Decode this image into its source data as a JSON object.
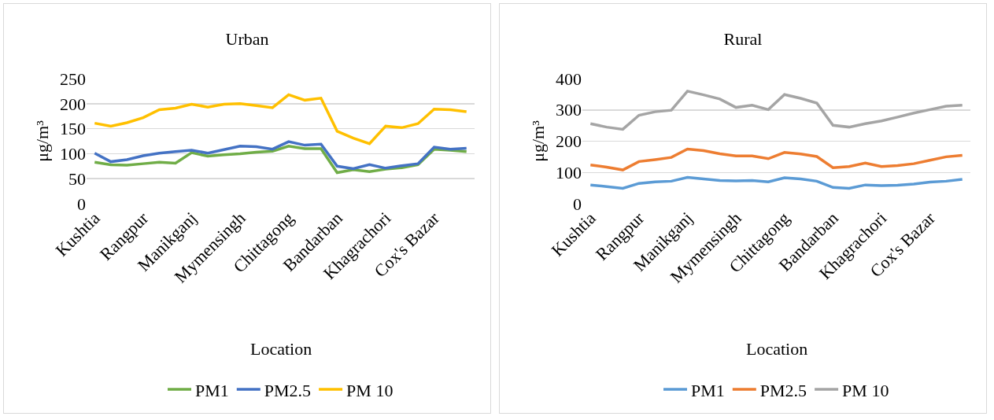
{
  "chart_data": [
    {
      "type": "line",
      "title": "Urban",
      "xlabel": "Location",
      "ylabel": "μg/m³",
      "categories": [
        "Kushtia",
        null,
        null,
        "Rangpur",
        null,
        null,
        "Manikganj",
        null,
        null,
        "Mymensingh",
        null,
        null,
        "Chittagong",
        null,
        null,
        "Bandarban",
        null,
        null,
        "Khagrachori",
        null,
        null,
        "Cox's Bazar",
        null,
        null
      ],
      "ylim": [
        0,
        250
      ],
      "yticks": [
        0,
        50,
        100,
        150,
        200,
        250
      ],
      "grid": "y",
      "legend": "bottom",
      "marker": "none",
      "line_style": "solid",
      "series": [
        {
          "name": "PM1",
          "color": "#70ad47",
          "values": [
            83,
            78,
            77,
            80,
            83,
            81,
            102,
            95,
            98,
            100,
            103,
            105,
            115,
            110,
            110,
            62,
            68,
            64,
            69,
            72,
            78,
            109,
            107,
            104
          ]
        },
        {
          "name": "PM2.5",
          "color": "#4472c4",
          "values": [
            101,
            84,
            88,
            96,
            101,
            104,
            107,
            101,
            108,
            115,
            114,
            109,
            124,
            117,
            119,
            75,
            70,
            78,
            71,
            76,
            80,
            113,
            109,
            111
          ]
        },
        {
          "name": "PM 10",
          "color": "#ffc000",
          "values": [
            161,
            155,
            162,
            172,
            188,
            191,
            199,
            193,
            199,
            200,
            196,
            192,
            218,
            207,
            211,
            145,
            131,
            120,
            155,
            152,
            160,
            189,
            188,
            184
          ]
        }
      ]
    },
    {
      "type": "line",
      "title": "Rural",
      "xlabel": "Location",
      "ylabel": "μg/m³",
      "categories": [
        "Kushtia",
        null,
        null,
        "Rangpur",
        null,
        null,
        "Manikganj",
        null,
        null,
        "Mymensingh",
        null,
        null,
        "Chittagong",
        null,
        null,
        "Bandarban",
        null,
        null,
        "Khagrachori",
        null,
        null,
        "Cox's Bazar",
        null,
        null
      ],
      "ylim": [
        0,
        400
      ],
      "yticks": [
        0,
        100,
        200,
        300,
        400
      ],
      "grid": "y",
      "legend": "bottom",
      "marker": "none",
      "line_style": "solid",
      "series": [
        {
          "name": "PM1",
          "color": "#5b9bd5",
          "values": [
            60,
            55,
            49,
            65,
            70,
            72,
            84,
            79,
            74,
            73,
            74,
            70,
            83,
            79,
            72,
            52,
            49,
            60,
            58,
            59,
            63,
            69,
            72,
            78
          ]
        },
        {
          "name": "PM2.5",
          "color": "#ed7d31",
          "values": [
            124,
            117,
            108,
            135,
            141,
            148,
            175,
            170,
            160,
            153,
            153,
            144,
            164,
            159,
            151,
            115,
            119,
            130,
            119,
            122,
            128,
            139,
            150,
            155
          ]
        },
        {
          "name": "PM 10",
          "color": "#a5a5a5",
          "values": [
            256,
            245,
            238,
            283,
            294,
            299,
            360,
            348,
            335,
            308,
            315,
            301,
            349,
            337,
            322,
            251,
            245,
            256,
            265,
            277,
            290,
            301,
            312,
            315
          ]
        }
      ]
    }
  ]
}
